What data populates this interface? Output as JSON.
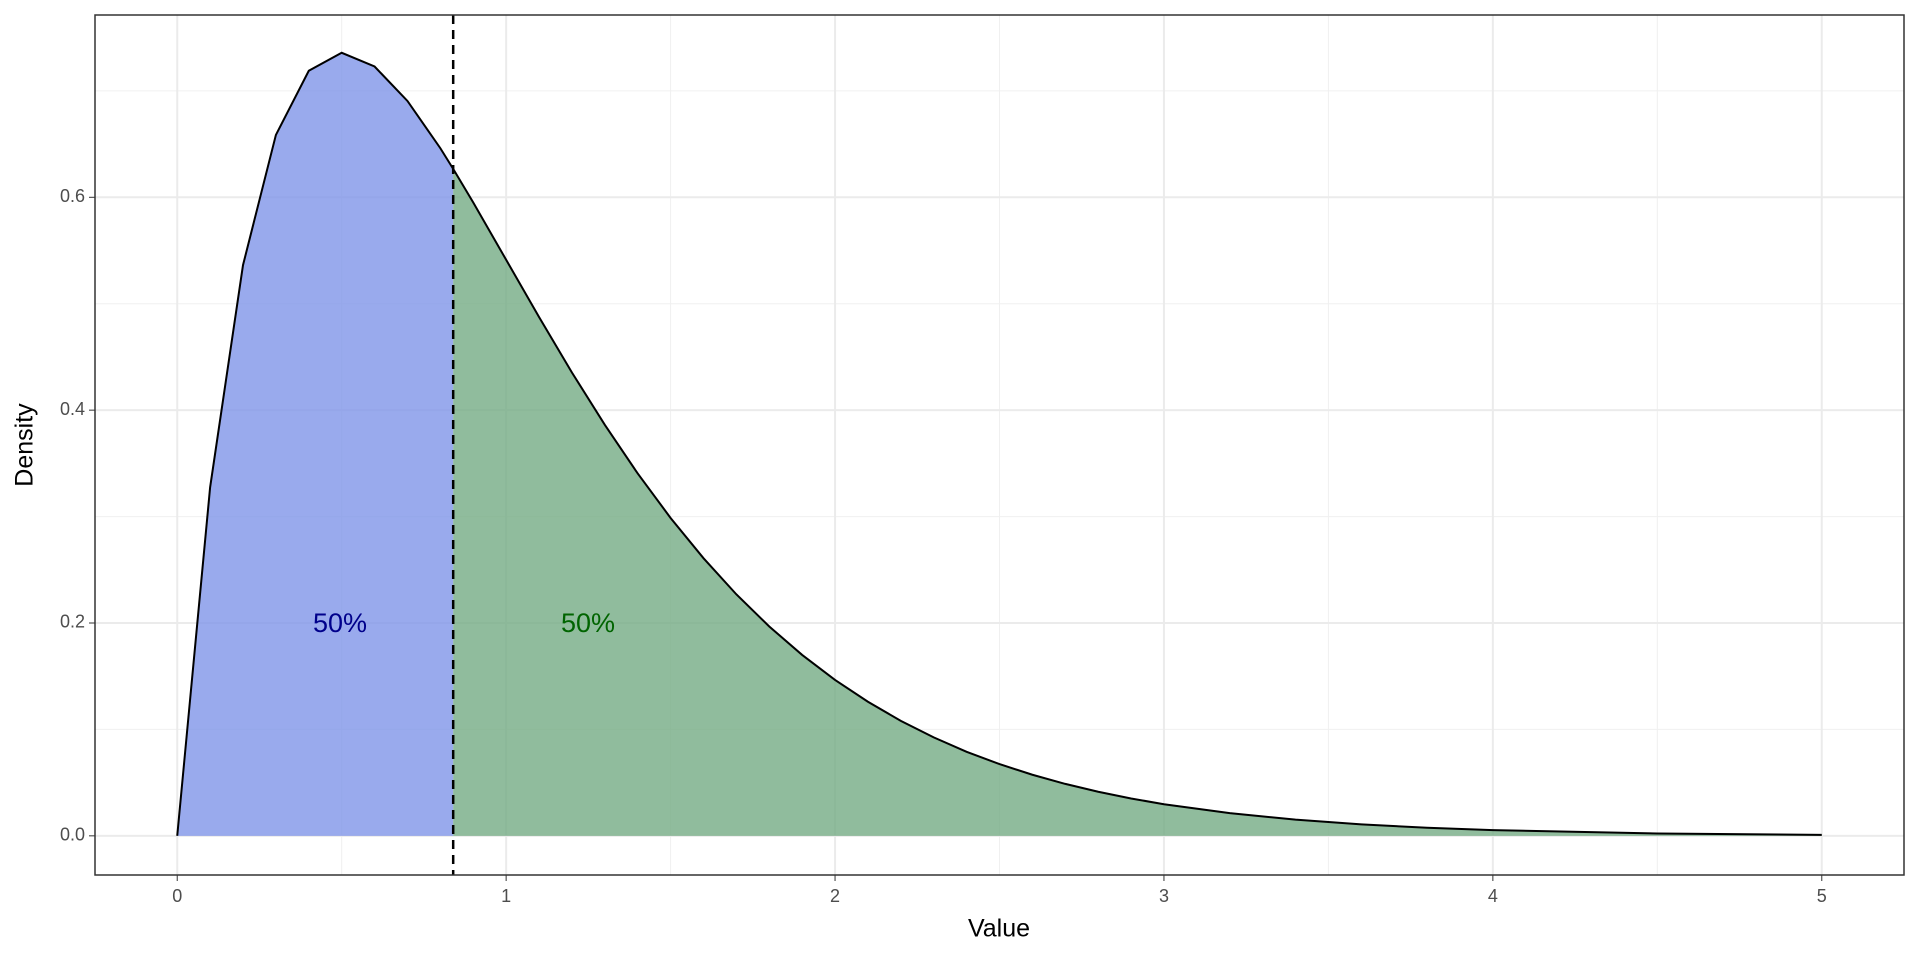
{
  "chart_data": {
    "type": "density-area",
    "xlabel": "Value",
    "ylabel": "Density",
    "xlim": [
      -0.25,
      5.25
    ],
    "ylim": [
      -0.0368,
      0.7713
    ],
    "xticks": [
      0,
      1,
      2,
      3,
      4,
      5
    ],
    "yticks": [
      {
        "value": 0,
        "label": "0.0"
      },
      {
        "value": 0.2,
        "label": "0.2"
      },
      {
        "value": 0.4,
        "label": "0.4"
      },
      {
        "value": 0.6,
        "label": "0.6"
      }
    ],
    "grid": true,
    "line_color": "#000000",
    "median": 0.839,
    "series": [
      {
        "color": "#8095e8",
        "label": "50%",
        "label_color": "#00008b",
        "x": [
          0,
          0.1,
          0.2,
          0.3,
          0.4,
          0.5,
          0.6,
          0.7,
          0.8,
          0.839
        ],
        "values": [
          0,
          0.3275,
          0.5363,
          0.6586,
          0.7189,
          0.7358,
          0.7229,
          0.6905,
          0.6461,
          0.6267
        ]
      },
      {
        "color": "#74ab84",
        "label": "50%",
        "label_color": "#006400",
        "x": [
          0.839,
          0.9,
          1.0,
          1.1,
          1.2,
          1.3,
          1.4,
          1.5,
          1.6,
          1.7,
          1.8,
          1.9,
          2.0,
          2.1,
          2.2,
          2.3,
          2.4,
          2.5,
          2.6,
          2.7,
          2.8,
          2.9,
          3.0,
          3.2,
          3.4,
          3.6,
          3.8,
          4.0,
          4.5,
          5.0
        ],
        "values": [
          0.6267,
          0.5951,
          0.5413,
          0.4875,
          0.4354,
          0.3862,
          0.3405,
          0.2987,
          0.2609,
          0.2269,
          0.1967,
          0.17,
          0.1465,
          0.126,
          0.108,
          0.0925,
          0.079,
          0.0674,
          0.0574,
          0.0488,
          0.0414,
          0.0351,
          0.0297,
          0.0213,
          0.0152,
          0.0108,
          0.0076,
          0.0054,
          0.0022,
          0.0009
        ]
      }
    ]
  }
}
